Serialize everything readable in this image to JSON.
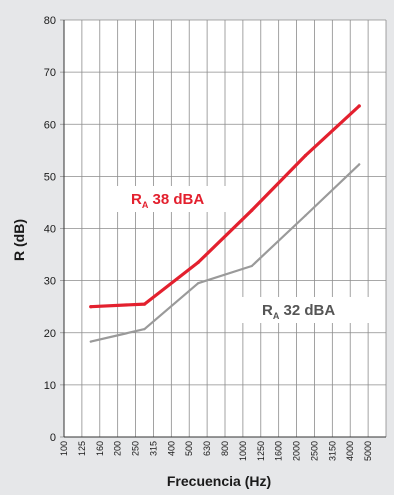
{
  "chart_data": {
    "type": "line",
    "xlabel": "Frecuencia (Hz)",
    "ylabel": "R (dB)",
    "ylim": [
      0,
      80
    ],
    "yticks": [
      "0",
      "10",
      "20",
      "30",
      "40",
      "50",
      "60",
      "70",
      "80"
    ],
    "categories": [
      "100",
      "125",
      "160",
      "200",
      "250",
      "315",
      "400",
      "500",
      "630",
      "800",
      "1000",
      "1250",
      "1600",
      "2000",
      "2500",
      "3150",
      "4000",
      "5000"
    ],
    "grid": true,
    "series": [
      {
        "name": "RA 38 dBA",
        "color": "#e3202e",
        "x": [
          "125",
          "250",
          "500",
          "1000",
          "2000",
          "4000"
        ],
        "values": [
          25,
          25.5,
          33.5,
          43.5,
          54,
          63.5
        ]
      },
      {
        "name": "RA 32 dBA",
        "color": "#9a9a9a",
        "x": [
          "125",
          "250",
          "500",
          "1000",
          "2000",
          "4000"
        ],
        "values": [
          18.3,
          20.7,
          29.5,
          32.8,
          42.5,
          52.3
        ]
      }
    ],
    "annotations": [
      {
        "main": "R",
        "sub": "A",
        "text": " 38 dBA",
        "color": "#e3202e",
        "series": 0
      },
      {
        "main": "R",
        "sub": "A",
        "text": " 32 dBA",
        "color": "#555555",
        "series": 1
      }
    ]
  }
}
